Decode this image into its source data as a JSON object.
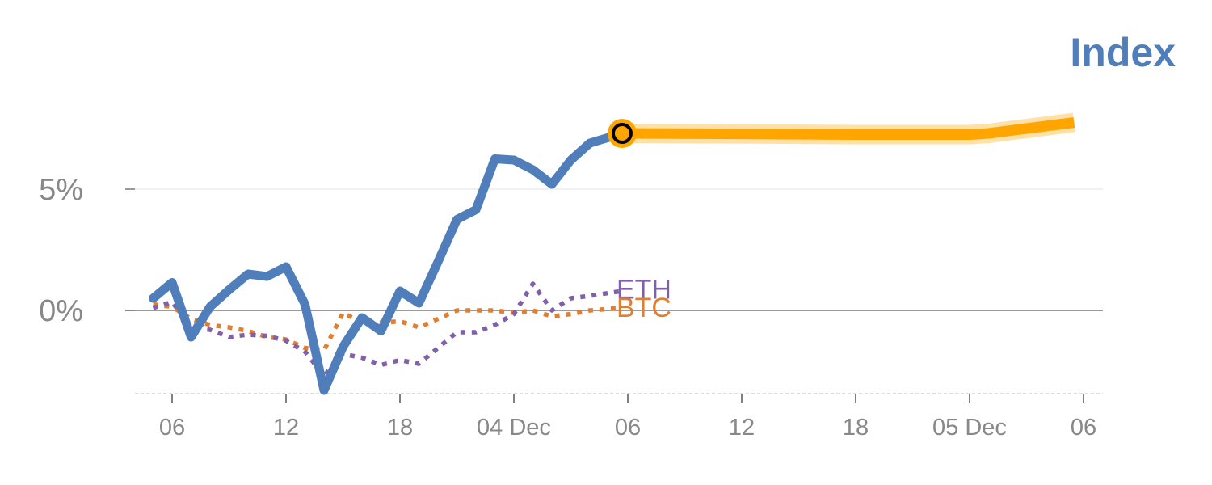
{
  "chart_data": {
    "type": "line",
    "title": "Index",
    "xlabel": "",
    "ylabel": "",
    "x_unit": "hours",
    "x_range": [
      -1,
      47.5
    ],
    "ylim": [
      -3.45,
      10
    ],
    "yticks": [
      {
        "value": 0,
        "label": "0%"
      },
      {
        "value": 5,
        "label": "5%"
      }
    ],
    "xticks": [
      {
        "value": 0,
        "label": "06"
      },
      {
        "value": 6,
        "label": "12"
      },
      {
        "value": 12,
        "label": "18"
      },
      {
        "value": 18,
        "label": "04 Dec"
      },
      {
        "value": 24,
        "label": "06"
      },
      {
        "value": 30,
        "label": "12"
      },
      {
        "value": 36,
        "label": "18"
      },
      {
        "value": 42,
        "label": "05 Dec"
      },
      {
        "value": 48,
        "label": "06"
      }
    ],
    "grid": true,
    "legend": "none",
    "current_point": {
      "x": 23.7,
      "y": 7.3
    },
    "series": [
      {
        "name": "Index",
        "color": "#4F7EBB",
        "style": "solid",
        "points": [
          [
            -1,
            0.5
          ],
          [
            0,
            1.15
          ],
          [
            1,
            -1.1
          ],
          [
            2,
            0.15
          ],
          [
            3,
            0.85
          ],
          [
            4,
            1.5
          ],
          [
            5,
            1.4
          ],
          [
            6,
            1.8
          ],
          [
            7,
            0.25
          ],
          [
            8,
            -3.3
          ],
          [
            9,
            -1.5
          ],
          [
            10,
            -0.3
          ],
          [
            11,
            -0.85
          ],
          [
            12,
            0.8
          ],
          [
            13,
            0.3
          ],
          [
            14,
            2.0
          ],
          [
            15,
            3.75
          ],
          [
            16,
            4.15
          ],
          [
            17,
            6.25
          ],
          [
            18,
            6.2
          ],
          [
            19,
            5.8
          ],
          [
            20,
            5.2
          ],
          [
            21,
            6.2
          ],
          [
            22,
            6.9
          ],
          [
            23.7,
            7.3
          ]
        ]
      },
      {
        "name": "Index-forecast",
        "color": "#FFA500",
        "style": "band",
        "points": [
          [
            23.7,
            7.3
          ],
          [
            30,
            7.28
          ],
          [
            36,
            7.25
          ],
          [
            42,
            7.25
          ],
          [
            43,
            7.3
          ],
          [
            45,
            7.5
          ],
          [
            47.5,
            7.75
          ]
        ]
      },
      {
        "name": "ETH",
        "color": "#8060A8",
        "style": "dotted",
        "points": [
          [
            -1,
            0.1
          ],
          [
            0,
            0.35
          ],
          [
            1,
            -0.7
          ],
          [
            2,
            -0.8
          ],
          [
            3,
            -1.1
          ],
          [
            4,
            -1.0
          ],
          [
            5,
            -1.05
          ],
          [
            6,
            -1.25
          ],
          [
            7,
            -1.7
          ],
          [
            8,
            -2.7
          ],
          [
            9,
            -1.8
          ],
          [
            10,
            -1.95
          ],
          [
            11,
            -2.25
          ],
          [
            12,
            -2.05
          ],
          [
            13,
            -2.2
          ],
          [
            14,
            -1.55
          ],
          [
            15,
            -0.9
          ],
          [
            16,
            -0.9
          ],
          [
            17,
            -0.6
          ],
          [
            18,
            -0.15
          ],
          [
            19,
            1.1
          ],
          [
            20,
            0.0
          ],
          [
            21,
            0.5
          ],
          [
            22,
            0.6
          ],
          [
            23.7,
            0.8
          ]
        ]
      },
      {
        "name": "BTC",
        "color": "#E07F32",
        "style": "dotted",
        "points": [
          [
            -1,
            0.25
          ],
          [
            0,
            0.15
          ],
          [
            1,
            -0.35
          ],
          [
            2,
            -0.6
          ],
          [
            3,
            -0.7
          ],
          [
            4,
            -0.85
          ],
          [
            5,
            -1.1
          ],
          [
            6,
            -1.2
          ],
          [
            7,
            -1.55
          ],
          [
            8,
            -1.65
          ],
          [
            9,
            -0.1
          ],
          [
            10,
            -0.5
          ],
          [
            11,
            -0.5
          ],
          [
            12,
            -0.45
          ],
          [
            13,
            -0.7
          ],
          [
            14,
            -0.35
          ],
          [
            15,
            0.0
          ],
          [
            16,
            0.0
          ],
          [
            17,
            0.0
          ],
          [
            18,
            -0.1
          ],
          [
            19,
            0.0
          ],
          [
            20,
            -0.25
          ],
          [
            21,
            -0.15
          ],
          [
            22,
            0.0
          ],
          [
            23.7,
            0.1
          ]
        ]
      }
    ],
    "series_labels": [
      {
        "name": "ETH",
        "text": "ETH",
        "x": 23.7,
        "y": 0.95,
        "color": "#8060A8"
      },
      {
        "name": "BTC",
        "text": "BTC",
        "x": 23.7,
        "y": 0.2,
        "color": "#E07F32"
      }
    ]
  }
}
